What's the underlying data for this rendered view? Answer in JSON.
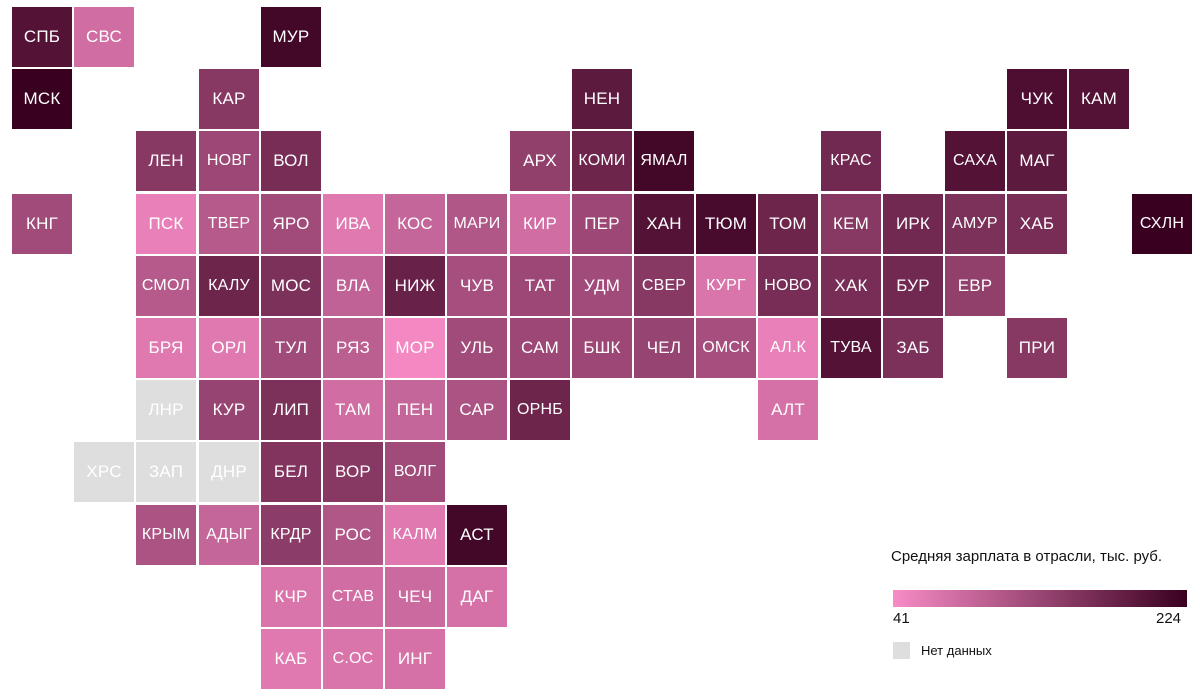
{
  "colors": {
    "low": "#f88bc6",
    "high": "#3a0020",
    "nodata": "#dedede"
  },
  "legend": {
    "title": "Средняя зарплата в отрасли, тыс. руб.",
    "min_label": "41",
    "max_label": "224",
    "min_value": 41,
    "max_value": 224,
    "nodata_label": "Нет данных"
  },
  "regions": [
    {
      "label": "СПБ",
      "row": 0,
      "col": 0,
      "value": 200
    },
    {
      "label": "СВС",
      "row": 0,
      "col": 1,
      "value": 80
    },
    {
      "label": "МУР",
      "row": 0,
      "col": 4,
      "value": 215
    },
    {
      "label": "МСК",
      "row": 1,
      "col": 0,
      "value": 224
    },
    {
      "label": "КАР",
      "row": 1,
      "col": 3,
      "value": 150
    },
    {
      "label": "НЕН",
      "row": 1,
      "col": 9,
      "value": 190
    },
    {
      "label": "ЧУК",
      "row": 1,
      "col": 16,
      "value": 205
    },
    {
      "label": "КАМ",
      "row": 1,
      "col": 17,
      "value": 200
    },
    {
      "label": "ЛЕН",
      "row": 2,
      "col": 2,
      "value": 150
    },
    {
      "label": "НОВГ",
      "row": 2,
      "col": 3,
      "value": 130
    },
    {
      "label": "ВОЛ",
      "row": 2,
      "col": 4,
      "value": 165
    },
    {
      "label": "АРХ",
      "row": 2,
      "col": 8,
      "value": 140
    },
    {
      "label": "КОМИ",
      "row": 2,
      "col": 9,
      "value": 175
    },
    {
      "label": "ЯМАЛ",
      "row": 2,
      "col": 10,
      "value": 215
    },
    {
      "label": "КРАС",
      "row": 2,
      "col": 13,
      "value": 170
    },
    {
      "label": "САХА",
      "row": 2,
      "col": 15,
      "value": 200
    },
    {
      "label": "МАГ",
      "row": 2,
      "col": 16,
      "value": 190
    },
    {
      "label": "КНГ",
      "row": 3,
      "col": 0,
      "value": 125
    },
    {
      "label": "ПСК",
      "row": 3,
      "col": 2,
      "value": 55
    },
    {
      "label": "ТВЕР",
      "row": 3,
      "col": 3,
      "value": 105
    },
    {
      "label": "ЯРО",
      "row": 3,
      "col": 4,
      "value": 125
    },
    {
      "label": "ИВА",
      "row": 3,
      "col": 5,
      "value": 65
    },
    {
      "label": "КОС",
      "row": 3,
      "col": 6,
      "value": 90
    },
    {
      "label": "МАРИ",
      "row": 3,
      "col": 7,
      "value": 110
    },
    {
      "label": "КИР",
      "row": 3,
      "col": 8,
      "value": 80
    },
    {
      "label": "ПЕР",
      "row": 3,
      "col": 9,
      "value": 130
    },
    {
      "label": "ХАН",
      "row": 3,
      "col": 10,
      "value": 200
    },
    {
      "label": "ТЮМ",
      "row": 3,
      "col": 11,
      "value": 210
    },
    {
      "label": "ТОМ",
      "row": 3,
      "col": 12,
      "value": 175
    },
    {
      "label": "КЕМ",
      "row": 3,
      "col": 13,
      "value": 150
    },
    {
      "label": "ИРК",
      "row": 3,
      "col": 14,
      "value": 170
    },
    {
      "label": "АМУР",
      "row": 3,
      "col": 15,
      "value": 160
    },
    {
      "label": "ХАБ",
      "row": 3,
      "col": 16,
      "value": 165
    },
    {
      "label": "СХЛН",
      "row": 3,
      "col": 18,
      "value": 224
    },
    {
      "label": "СМОЛ",
      "row": 4,
      "col": 2,
      "value": 105
    },
    {
      "label": "КАЛУ",
      "row": 4,
      "col": 3,
      "value": 175
    },
    {
      "label": "МОС",
      "row": 4,
      "col": 4,
      "value": 160
    },
    {
      "label": "ВЛА",
      "row": 4,
      "col": 5,
      "value": 95
    },
    {
      "label": "НИЖ",
      "row": 4,
      "col": 6,
      "value": 180
    },
    {
      "label": "ЧУВ",
      "row": 4,
      "col": 7,
      "value": 120
    },
    {
      "label": "ТАТ",
      "row": 4,
      "col": 8,
      "value": 130
    },
    {
      "label": "УДМ",
      "row": 4,
      "col": 9,
      "value": 125
    },
    {
      "label": "СВЕР",
      "row": 4,
      "col": 10,
      "value": 150
    },
    {
      "label": "КУРГ",
      "row": 4,
      "col": 11,
      "value": 70
    },
    {
      "label": "НОВО",
      "row": 4,
      "col": 12,
      "value": 165
    },
    {
      "label": "ХАК",
      "row": 4,
      "col": 13,
      "value": 165
    },
    {
      "label": "БУР",
      "row": 4,
      "col": 14,
      "value": 170
    },
    {
      "label": "ЕВР",
      "row": 4,
      "col": 15,
      "value": 140
    },
    {
      "label": "БРЯ",
      "row": 5,
      "col": 2,
      "value": 65
    },
    {
      "label": "ОРЛ",
      "row": 5,
      "col": 3,
      "value": 65
    },
    {
      "label": "ТУЛ",
      "row": 5,
      "col": 4,
      "value": 125
    },
    {
      "label": "РЯЗ",
      "row": 5,
      "col": 5,
      "value": 100
    },
    {
      "label": "МОР",
      "row": 5,
      "col": 6,
      "value": 45
    },
    {
      "label": "УЛЬ",
      "row": 5,
      "col": 7,
      "value": 125
    },
    {
      "label": "САМ",
      "row": 5,
      "col": 8,
      "value": 130
    },
    {
      "label": "БШК",
      "row": 5,
      "col": 9,
      "value": 130
    },
    {
      "label": "ЧЕЛ",
      "row": 5,
      "col": 10,
      "value": 135
    },
    {
      "label": "ОМСК",
      "row": 5,
      "col": 11,
      "value": 120
    },
    {
      "label": "АЛ.К",
      "row": 5,
      "col": 12,
      "value": 55
    },
    {
      "label": "ТУВА",
      "row": 5,
      "col": 13,
      "value": 200
    },
    {
      "label": "ЗАБ",
      "row": 5,
      "col": 14,
      "value": 160
    },
    {
      "label": "ПРИ",
      "row": 5,
      "col": 16,
      "value": 150
    },
    {
      "label": "ЛНР",
      "row": 6,
      "col": 2,
      "nodata": true
    },
    {
      "label": "КУР",
      "row": 6,
      "col": 3,
      "value": 135
    },
    {
      "label": "ЛИП",
      "row": 6,
      "col": 4,
      "value": 160
    },
    {
      "label": "ТАМ",
      "row": 6,
      "col": 5,
      "value": 80
    },
    {
      "label": "ПЕН",
      "row": 6,
      "col": 6,
      "value": 90
    },
    {
      "label": "САР",
      "row": 6,
      "col": 7,
      "value": 115
    },
    {
      "label": "ОРНБ",
      "row": 6,
      "col": 8,
      "value": 175
    },
    {
      "label": "АЛТ",
      "row": 6,
      "col": 12,
      "value": 75
    },
    {
      "label": "ХРС",
      "row": 7,
      "col": 1,
      "nodata": true
    },
    {
      "label": "ЗАП",
      "row": 7,
      "col": 2,
      "nodata": true
    },
    {
      "label": "ДНР",
      "row": 7,
      "col": 3,
      "nodata": true
    },
    {
      "label": "БЕЛ",
      "row": 7,
      "col": 4,
      "value": 155
    },
    {
      "label": "ВОР",
      "row": 7,
      "col": 5,
      "value": 150
    },
    {
      "label": "ВОЛГ",
      "row": 7,
      "col": 6,
      "value": 125
    },
    {
      "label": "КРЫМ",
      "row": 8,
      "col": 2,
      "value": 115
    },
    {
      "label": "АДЫГ",
      "row": 8,
      "col": 3,
      "value": 90
    },
    {
      "label": "КРДР",
      "row": 8,
      "col": 4,
      "value": 145
    },
    {
      "label": "РОС",
      "row": 8,
      "col": 5,
      "value": 110
    },
    {
      "label": "КАЛМ",
      "row": 8,
      "col": 6,
      "value": 65
    },
    {
      "label": "АСТ",
      "row": 8,
      "col": 7,
      "value": 215
    },
    {
      "label": "КЧР",
      "row": 9,
      "col": 4,
      "value": 70
    },
    {
      "label": "СТАВ",
      "row": 9,
      "col": 5,
      "value": 80
    },
    {
      "label": "ЧЕЧ",
      "row": 9,
      "col": 6,
      "value": 85
    },
    {
      "label": "ДАГ",
      "row": 9,
      "col": 7,
      "value": 75
    },
    {
      "label": "КАБ",
      "row": 10,
      "col": 4,
      "value": 65
    },
    {
      "label": "С.ОС",
      "row": 10,
      "col": 5,
      "value": 70
    },
    {
      "label": "ИНГ",
      "row": 10,
      "col": 6,
      "value": 75
    }
  ]
}
